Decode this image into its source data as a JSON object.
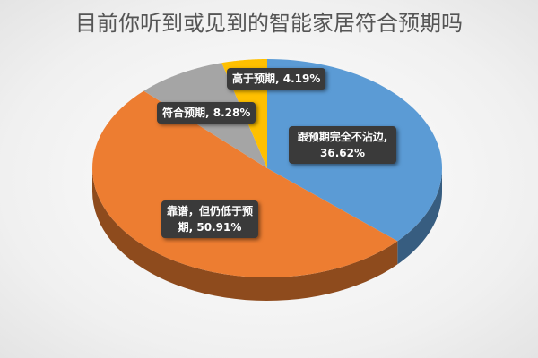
{
  "chart_data": {
    "type": "pie",
    "title": "目前你听到或见到的智能家居符合预期吗",
    "three_d": true,
    "start": "top, clockwise",
    "slices": [
      {
        "label": "跟预期完全不沾边",
        "value": 36.62,
        "display": "跟预期完全不沾边, 36.62%",
        "color": "#5b9bd5"
      },
      {
        "label": "靠谱，但仍低于预期",
        "value": 50.91,
        "display": "靠谱，但仍低于预期, 50.91%",
        "color": "#ed7d31"
      },
      {
        "label": "符合预期",
        "value": 8.28,
        "display": "符合预期, 8.28%",
        "color": "#a5a5a5"
      },
      {
        "label": "高于预期",
        "value": 4.19,
        "display": "高于预期, 4.19%",
        "color": "#ffc000"
      }
    ]
  }
}
